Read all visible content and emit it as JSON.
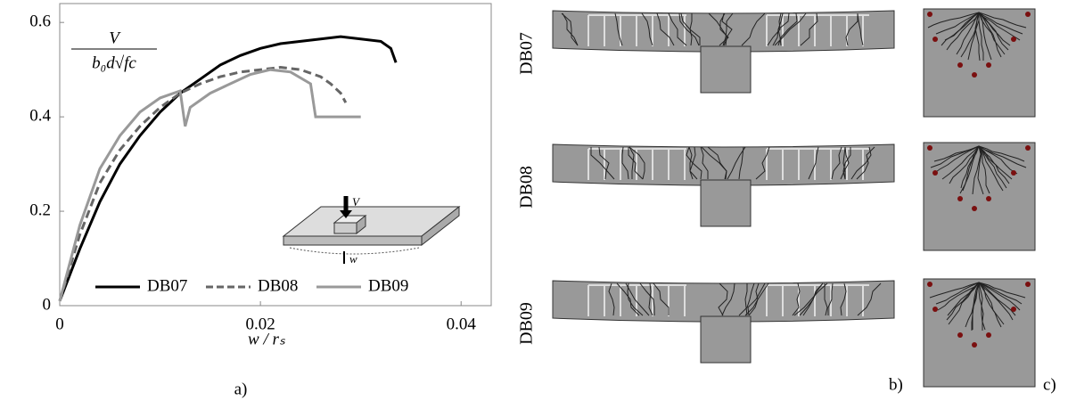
{
  "chart_data": {
    "type": "line",
    "ylabel_numerator": "V",
    "ylabel_denominator": "b₀d√fc",
    "xlabel": "w / rₛ",
    "inset_load_label": "V",
    "inset_deflection_label": "w",
    "panel_label": "a)",
    "xlim": [
      0,
      0.043
    ],
    "ylim": [
      0,
      0.64
    ],
    "xticks": [
      0,
      0.02,
      0.04
    ],
    "yticks": [
      0,
      0.2,
      0.4,
      0.6
    ],
    "legend": "bottom",
    "series": [
      {
        "name": "DB07",
        "color": "#000000",
        "dash": "solid",
        "x": [
          0,
          0.002,
          0.004,
          0.006,
          0.008,
          0.01,
          0.012,
          0.014,
          0.016,
          0.018,
          0.02,
          0.022,
          0.024,
          0.026,
          0.028,
          0.03,
          0.032,
          0.033,
          0.0335
        ],
        "values": [
          0.01,
          0.12,
          0.22,
          0.3,
          0.36,
          0.41,
          0.45,
          0.48,
          0.51,
          0.53,
          0.545,
          0.555,
          0.56,
          0.565,
          0.57,
          0.565,
          0.56,
          0.545,
          0.515
        ]
      },
      {
        "name": "DB08",
        "color": "#666666",
        "dash": "dashed",
        "x": [
          0,
          0.002,
          0.004,
          0.006,
          0.008,
          0.01,
          0.012,
          0.014,
          0.016,
          0.018,
          0.02,
          0.022,
          0.024,
          0.026,
          0.027,
          0.028,
          0.0285
        ],
        "values": [
          0.01,
          0.15,
          0.26,
          0.33,
          0.38,
          0.42,
          0.45,
          0.47,
          0.485,
          0.495,
          0.5,
          0.505,
          0.5,
          0.485,
          0.47,
          0.45,
          0.43
        ]
      },
      {
        "name": "DB09",
        "color": "#999999",
        "dash": "solid",
        "x": [
          0,
          0.002,
          0.004,
          0.006,
          0.008,
          0.01,
          0.012,
          0.0125,
          0.013,
          0.015,
          0.017,
          0.019,
          0.021,
          0.023,
          0.025,
          0.0255,
          0.03
        ],
        "values": [
          0.01,
          0.17,
          0.29,
          0.36,
          0.41,
          0.44,
          0.455,
          0.38,
          0.42,
          0.45,
          0.47,
          0.49,
          0.5,
          0.495,
          0.47,
          0.4,
          0.4
        ]
      }
    ]
  },
  "specimens": [
    "DB07",
    "DB08",
    "DB09"
  ],
  "panel_b_label": "b)",
  "panel_c_label": "c)"
}
